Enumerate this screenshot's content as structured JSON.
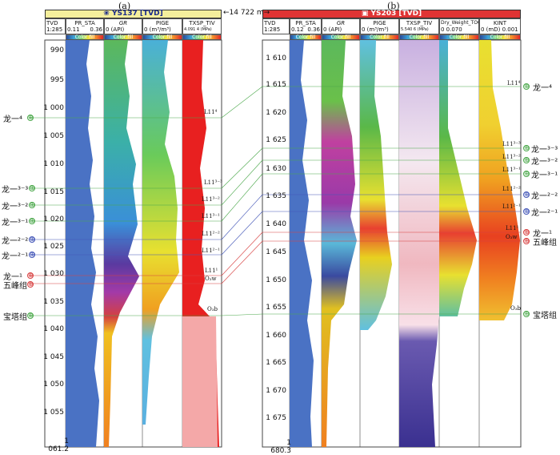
{
  "panel_a": {
    "letter": "(a)",
    "well": "YS137 [TVD]",
    "header": {
      "tvd": "TVD",
      "scale": "1:285",
      "pr_sta": "PR_STA",
      "pr_sta_min": "0.11",
      "pr_sta_max": "0.36",
      "gr": "GR",
      "gr_range": "0  (API) 354.5",
      "pige": "PIGE",
      "pige_range": "0  (m³/m³) 0.055",
      "txsp": "TXSP_TIV",
      "txsp_range": "4.091 4 (MPa) 32.871",
      "color_fill": "Color fill"
    },
    "depths": [
      "990",
      "995",
      "1 000",
      "1 005",
      "1 010",
      "1 015",
      "1 020",
      "1 025",
      "1 030",
      "1 035",
      "1 040",
      "1 045",
      "1 050",
      "1 055",
      "1 061.2"
    ],
    "track_labels": [
      "L11⁴",
      "L11³⁻³",
      "L11³⁻²",
      "L11³⁻¹",
      "L11²⁻²",
      "L11²⁻¹",
      "L11¹",
      "O₃w",
      "O₃b"
    ]
  },
  "panel_b": {
    "letter": "(b)",
    "well": "YS203 [TVD]",
    "header": {
      "tvd": "TVD",
      "scale": "1:285",
      "pr_sta": "PR_STA",
      "pr_sta_min": "0.12",
      "pr_sta_max": "0.36",
      "gr": "GR",
      "gr_range": "0  (API) 446.4",
      "pige": "PIGE",
      "pige_range": "0  (m³/m³) 0.065",
      "txsp": "TXSP_TIV",
      "txsp_range": "5.540 6 (MPa) 53.993",
      "toc": "Dry_Weight_TOC",
      "toc_range": "0       0.070",
      "kint": "KINT",
      "kint_range": "0  (mD) 0.001",
      "color_fill": "Color fill"
    },
    "depths": [
      "1 610",
      "1 615",
      "1 620",
      "1 625",
      "1 630",
      "1 635",
      "1 640",
      "1 645",
      "1 650",
      "1 655",
      "1 660",
      "1 665",
      "1 670",
      "1 675",
      "1 680.3"
    ],
    "track_labels": [
      "L11⁴",
      "L11³⁻³",
      "L11³⁻²",
      "L11³⁻¹",
      "L11²⁻²",
      "L11²⁻¹",
      "L11¹",
      "O₃w",
      "O₃b"
    ]
  },
  "distance": "14 722 m",
  "formations_left": [
    "龙一⁴",
    "龙一³⁻³",
    "龙一³⁻²",
    "龙一³⁻¹",
    "龙一²⁻²",
    "龙一²⁻¹",
    "龙一¹",
    "五峰组",
    "宝塔组"
  ],
  "formations_right": [
    "龙一⁴",
    "龙一³⁻³",
    "龙一³⁻²",
    "龙一³⁻¹",
    "龙一²⁻²",
    "龙一²⁻¹",
    "龙一¹",
    "五峰组",
    "宝塔组"
  ],
  "mark_symbol": "⊕",
  "colors": {
    "green": "#4aa84a",
    "blue": "#4457b8",
    "red": "#d84040",
    "pr_sta": "#4a72c4",
    "txsp_a": "#e82020",
    "txsp_b": "#4a3d96"
  }
}
